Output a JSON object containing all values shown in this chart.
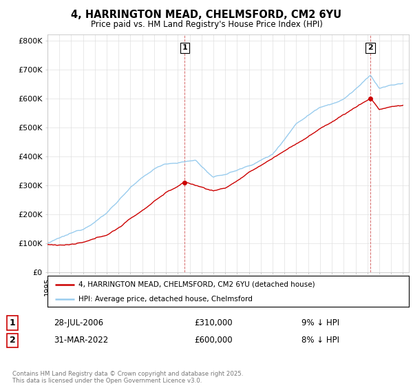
{
  "title_line1": "4, HARRINGTON MEAD, CHELMSFORD, CM2 6YU",
  "title_line2": "Price paid vs. HM Land Registry's House Price Index (HPI)",
  "ytick_labels": [
    "£0",
    "£100K",
    "£200K",
    "£300K",
    "£400K",
    "£500K",
    "£600K",
    "£700K",
    "£800K"
  ],
  "yticks": [
    0,
    100000,
    200000,
    300000,
    400000,
    500000,
    600000,
    700000,
    800000
  ],
  "ylim_max": 820000,
  "sale1_year": 2006.58,
  "sale1_price": 310000,
  "sale1_label": "1",
  "sale1_date": "28-JUL-2006",
  "sale1_pct": "9% ↓ HPI",
  "sale2_year": 2022.25,
  "sale2_price": 600000,
  "sale2_label": "2",
  "sale2_date": "31-MAR-2022",
  "sale2_pct": "8% ↓ HPI",
  "legend_label_red": "4, HARRINGTON MEAD, CHELMSFORD, CM2 6YU (detached house)",
  "legend_label_blue": "HPI: Average price, detached house, Chelmsford",
  "footer": "Contains HM Land Registry data © Crown copyright and database right 2025.\nThis data is licensed under the Open Government Licence v3.0.",
  "red_color": "#cc0000",
  "blue_color": "#99ccee",
  "vline_color": "#cc4444",
  "grid_color": "#e0e0e0",
  "bg_color": "#ffffff"
}
